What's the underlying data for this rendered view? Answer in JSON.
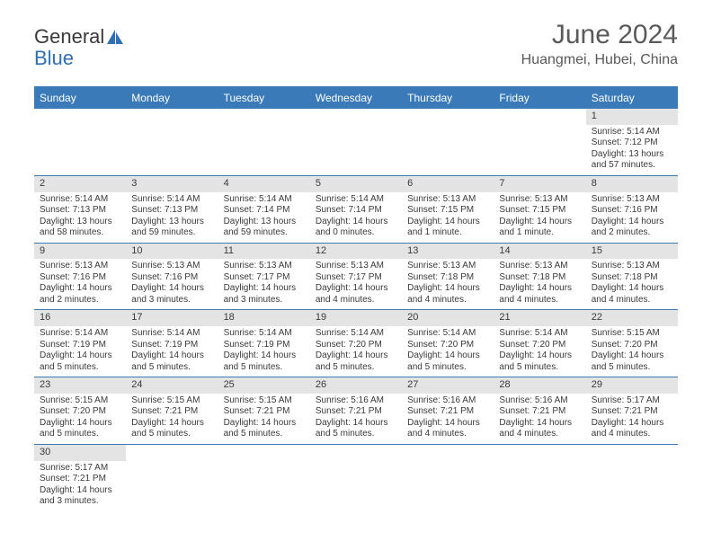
{
  "logo": {
    "text1": "General",
    "text2": "Blue"
  },
  "title": {
    "month": "June 2024",
    "location": "Huangmei, Hubei, China"
  },
  "colors": {
    "headerBg": "#3a7ab8",
    "headerFg": "#ffffff",
    "numBg": "#e4e4e4",
    "rule": "#3a7ab8"
  },
  "dayNames": [
    "Sunday",
    "Monday",
    "Tuesday",
    "Wednesday",
    "Thursday",
    "Friday",
    "Saturday"
  ],
  "weeks": [
    [
      {
        "blank": true
      },
      {
        "blank": true
      },
      {
        "blank": true
      },
      {
        "blank": true
      },
      {
        "blank": true
      },
      {
        "blank": true
      },
      {
        "n": "1",
        "sr": "Sunrise: 5:14 AM",
        "ss": "Sunset: 7:12 PM",
        "dl": "Daylight: 13 hours and 57 minutes."
      }
    ],
    [
      {
        "n": "2",
        "sr": "Sunrise: 5:14 AM",
        "ss": "Sunset: 7:13 PM",
        "dl": "Daylight: 13 hours and 58 minutes."
      },
      {
        "n": "3",
        "sr": "Sunrise: 5:14 AM",
        "ss": "Sunset: 7:13 PM",
        "dl": "Daylight: 13 hours and 59 minutes."
      },
      {
        "n": "4",
        "sr": "Sunrise: 5:14 AM",
        "ss": "Sunset: 7:14 PM",
        "dl": "Daylight: 13 hours and 59 minutes."
      },
      {
        "n": "5",
        "sr": "Sunrise: 5:14 AM",
        "ss": "Sunset: 7:14 PM",
        "dl": "Daylight: 14 hours and 0 minutes."
      },
      {
        "n": "6",
        "sr": "Sunrise: 5:13 AM",
        "ss": "Sunset: 7:15 PM",
        "dl": "Daylight: 14 hours and 1 minute."
      },
      {
        "n": "7",
        "sr": "Sunrise: 5:13 AM",
        "ss": "Sunset: 7:15 PM",
        "dl": "Daylight: 14 hours and 1 minute."
      },
      {
        "n": "8",
        "sr": "Sunrise: 5:13 AM",
        "ss": "Sunset: 7:16 PM",
        "dl": "Daylight: 14 hours and 2 minutes."
      }
    ],
    [
      {
        "n": "9",
        "sr": "Sunrise: 5:13 AM",
        "ss": "Sunset: 7:16 PM",
        "dl": "Daylight: 14 hours and 2 minutes."
      },
      {
        "n": "10",
        "sr": "Sunrise: 5:13 AM",
        "ss": "Sunset: 7:16 PM",
        "dl": "Daylight: 14 hours and 3 minutes."
      },
      {
        "n": "11",
        "sr": "Sunrise: 5:13 AM",
        "ss": "Sunset: 7:17 PM",
        "dl": "Daylight: 14 hours and 3 minutes."
      },
      {
        "n": "12",
        "sr": "Sunrise: 5:13 AM",
        "ss": "Sunset: 7:17 PM",
        "dl": "Daylight: 14 hours and 4 minutes."
      },
      {
        "n": "13",
        "sr": "Sunrise: 5:13 AM",
        "ss": "Sunset: 7:18 PM",
        "dl": "Daylight: 14 hours and 4 minutes."
      },
      {
        "n": "14",
        "sr": "Sunrise: 5:13 AM",
        "ss": "Sunset: 7:18 PM",
        "dl": "Daylight: 14 hours and 4 minutes."
      },
      {
        "n": "15",
        "sr": "Sunrise: 5:13 AM",
        "ss": "Sunset: 7:18 PM",
        "dl": "Daylight: 14 hours and 4 minutes."
      }
    ],
    [
      {
        "n": "16",
        "sr": "Sunrise: 5:14 AM",
        "ss": "Sunset: 7:19 PM",
        "dl": "Daylight: 14 hours and 5 minutes."
      },
      {
        "n": "17",
        "sr": "Sunrise: 5:14 AM",
        "ss": "Sunset: 7:19 PM",
        "dl": "Daylight: 14 hours and 5 minutes."
      },
      {
        "n": "18",
        "sr": "Sunrise: 5:14 AM",
        "ss": "Sunset: 7:19 PM",
        "dl": "Daylight: 14 hours and 5 minutes."
      },
      {
        "n": "19",
        "sr": "Sunrise: 5:14 AM",
        "ss": "Sunset: 7:20 PM",
        "dl": "Daylight: 14 hours and 5 minutes."
      },
      {
        "n": "20",
        "sr": "Sunrise: 5:14 AM",
        "ss": "Sunset: 7:20 PM",
        "dl": "Daylight: 14 hours and 5 minutes."
      },
      {
        "n": "21",
        "sr": "Sunrise: 5:14 AM",
        "ss": "Sunset: 7:20 PM",
        "dl": "Daylight: 14 hours and 5 minutes."
      },
      {
        "n": "22",
        "sr": "Sunrise: 5:15 AM",
        "ss": "Sunset: 7:20 PM",
        "dl": "Daylight: 14 hours and 5 minutes."
      }
    ],
    [
      {
        "n": "23",
        "sr": "Sunrise: 5:15 AM",
        "ss": "Sunset: 7:20 PM",
        "dl": "Daylight: 14 hours and 5 minutes."
      },
      {
        "n": "24",
        "sr": "Sunrise: 5:15 AM",
        "ss": "Sunset: 7:21 PM",
        "dl": "Daylight: 14 hours and 5 minutes."
      },
      {
        "n": "25",
        "sr": "Sunrise: 5:15 AM",
        "ss": "Sunset: 7:21 PM",
        "dl": "Daylight: 14 hours and 5 minutes."
      },
      {
        "n": "26",
        "sr": "Sunrise: 5:16 AM",
        "ss": "Sunset: 7:21 PM",
        "dl": "Daylight: 14 hours and 5 minutes."
      },
      {
        "n": "27",
        "sr": "Sunrise: 5:16 AM",
        "ss": "Sunset: 7:21 PM",
        "dl": "Daylight: 14 hours and 4 minutes."
      },
      {
        "n": "28",
        "sr": "Sunrise: 5:16 AM",
        "ss": "Sunset: 7:21 PM",
        "dl": "Daylight: 14 hours and 4 minutes."
      },
      {
        "n": "29",
        "sr": "Sunrise: 5:17 AM",
        "ss": "Sunset: 7:21 PM",
        "dl": "Daylight: 14 hours and 4 minutes."
      }
    ],
    [
      {
        "n": "30",
        "sr": "Sunrise: 5:17 AM",
        "ss": "Sunset: 7:21 PM",
        "dl": "Daylight: 14 hours and 3 minutes."
      },
      {
        "blank": true
      },
      {
        "blank": true
      },
      {
        "blank": true
      },
      {
        "blank": true
      },
      {
        "blank": true
      },
      {
        "blank": true
      }
    ]
  ]
}
